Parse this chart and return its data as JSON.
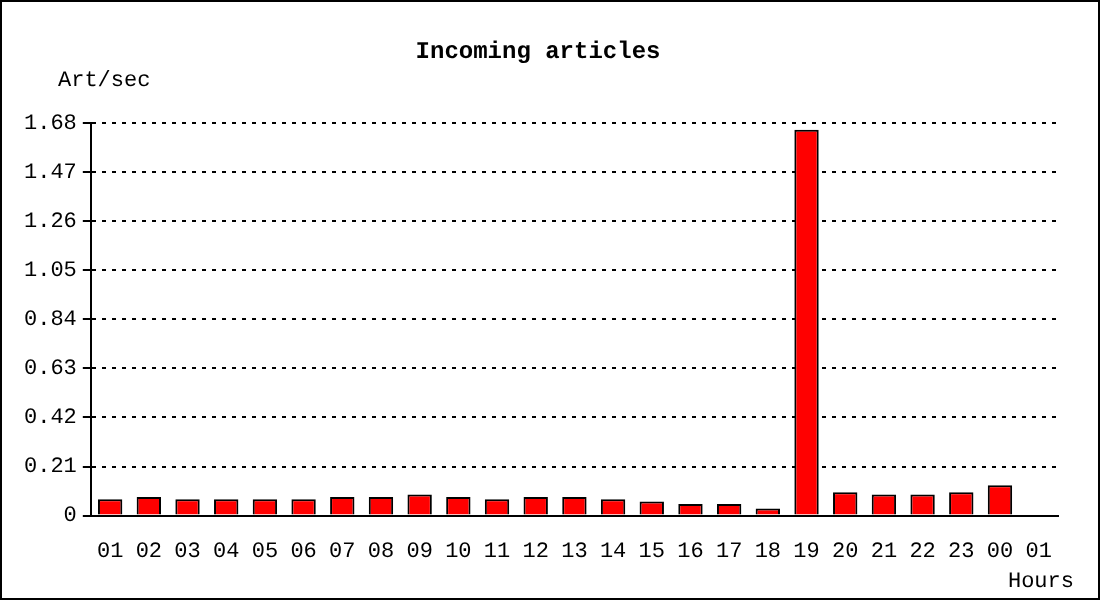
{
  "chart_data": {
    "type": "bar",
    "title": "Incoming articles",
    "ylabel": "Art/sec",
    "xlabel": "Hours",
    "categories": [
      "01",
      "02",
      "03",
      "04",
      "05",
      "06",
      "07",
      "08",
      "09",
      "10",
      "11",
      "12",
      "13",
      "14",
      "15",
      "16",
      "17",
      "18",
      "19",
      "20",
      "21",
      "22",
      "23",
      "00",
      "01"
    ],
    "values": [
      0.07,
      0.08,
      0.07,
      0.07,
      0.07,
      0.07,
      0.08,
      0.08,
      0.09,
      0.08,
      0.07,
      0.08,
      0.08,
      0.07,
      0.06,
      0.05,
      0.05,
      0.03,
      1.65,
      0.1,
      0.09,
      0.09,
      0.1,
      0.13,
      0
    ],
    "color": "#ff0000",
    "ylim": [
      0,
      1.68
    ],
    "yticks": [
      0,
      0.21,
      0.42,
      0.63,
      0.84,
      1.05,
      1.26,
      1.47,
      1.68
    ],
    "grid": "y",
    "line_style": "dotted"
  }
}
